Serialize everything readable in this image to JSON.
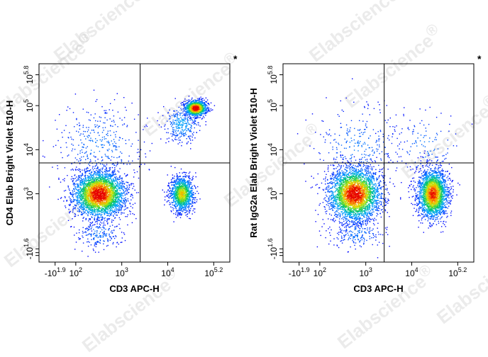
{
  "watermark": "Elabscience",
  "watermark_mark": "®",
  "chart_data": [
    {
      "type": "scatter",
      "panel_mark": "*",
      "xlabel": "CD3 APC-H",
      "ylabel": "CD4 Elab Bright Violet 510-H",
      "x_scale": "biexponential",
      "y_scale": "biexponential",
      "x_ticks": [
        {
          "base": "-10",
          "exp": "1.9"
        },
        {
          "base": "10",
          "exp": "2"
        },
        {
          "base": "10",
          "exp": "3"
        },
        {
          "base": "10",
          "exp": "4"
        },
        {
          "base": "10",
          "exp": "5.2"
        }
      ],
      "y_ticks": [
        {
          "base": "-10",
          "exp": "1.6"
        },
        {
          "base": "10",
          "exp": "3"
        },
        {
          "base": "10",
          "exp": "4"
        },
        {
          "base": "10",
          "exp": "5"
        },
        {
          "base": "10",
          "exp": "5.8"
        }
      ],
      "gates": {
        "x": 3.4,
        "y": 3.7
      },
      "populations": [
        {
          "x": 2.5,
          "y": 3.0,
          "sx": 0.28,
          "sy": 0.26,
          "n": 3200,
          "intensity": 1.0
        },
        {
          "x": 4.3,
          "y": 3.0,
          "sx": 0.13,
          "sy": 0.2,
          "n": 1200,
          "intensity": 0.7
        },
        {
          "x": 4.6,
          "y": 4.95,
          "sx": 0.12,
          "sy": 0.09,
          "n": 1100,
          "intensity": 1.0
        },
        {
          "x": 4.3,
          "y": 4.6,
          "sx": 0.2,
          "sy": 0.22,
          "n": 300,
          "intensity": 0.3
        },
        {
          "x": 2.5,
          "y": 4.1,
          "sx": 0.5,
          "sy": 0.5,
          "n": 380,
          "intensity": 0.2
        },
        {
          "x": 2.5,
          "y": 2.1,
          "sx": 0.25,
          "sy": 0.18,
          "n": 200,
          "intensity": 0.2
        }
      ]
    },
    {
      "type": "scatter",
      "panel_mark": "*",
      "xlabel": "CD3 APC-H",
      "ylabel": "Rat IgG2a Elab Bright Violet 510-H",
      "x_scale": "biexponential",
      "y_scale": "biexponential",
      "x_ticks": [
        {
          "base": "-10",
          "exp": "1.9"
        },
        {
          "base": "10",
          "exp": "2"
        },
        {
          "base": "10",
          "exp": "3"
        },
        {
          "base": "10",
          "exp": "4"
        },
        {
          "base": "10",
          "exp": "5.2"
        }
      ],
      "y_ticks": [
        {
          "base": "-10",
          "exp": "1.6"
        },
        {
          "base": "10",
          "exp": "3"
        },
        {
          "base": "10",
          "exp": "4"
        },
        {
          "base": "10",
          "exp": "5"
        },
        {
          "base": "10",
          "exp": "5.8"
        }
      ],
      "gates": {
        "x": 3.4,
        "y": 3.7
      },
      "populations": [
        {
          "x": 2.75,
          "y": 3.0,
          "sx": 0.28,
          "sy": 0.3,
          "n": 3200,
          "intensity": 1.0
        },
        {
          "x": 4.45,
          "y": 3.0,
          "sx": 0.16,
          "sy": 0.28,
          "n": 2300,
          "intensity": 0.9
        },
        {
          "x": 2.8,
          "y": 4.1,
          "sx": 0.5,
          "sy": 0.5,
          "n": 300,
          "intensity": 0.2
        },
        {
          "x": 4.3,
          "y": 4.1,
          "sx": 0.4,
          "sy": 0.4,
          "n": 120,
          "intensity": 0.2
        },
        {
          "x": 2.8,
          "y": 2.1,
          "sx": 0.3,
          "sy": 0.18,
          "n": 200,
          "intensity": 0.2
        }
      ]
    }
  ]
}
